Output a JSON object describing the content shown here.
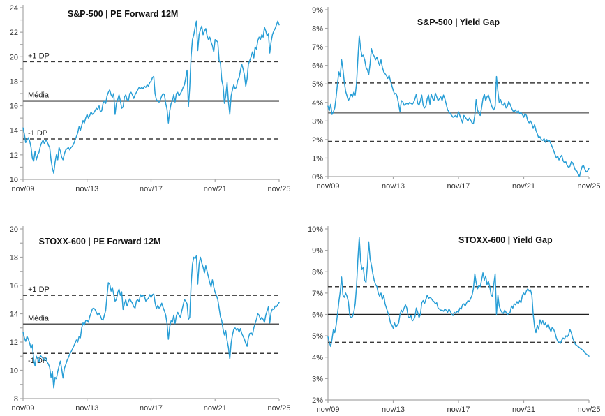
{
  "page": {
    "background": "#ffffff"
  },
  "colors": {
    "series_line": "#289ED6",
    "mean_line_gray": "#6E6E6E",
    "dashed_line": "#3A3A3A",
    "axis": "#A6A6A6",
    "tick_text": "#333333",
    "title_text": "#111111",
    "ref_label_text": "#1F1F1F"
  },
  "chart_data": [
    {
      "id": "sp500-pe-forward-12m",
      "type": "line",
      "title": "S&P-500 | PE Forward 12M",
      "x_tick_labels": [
        "nov/09",
        "nov/13",
        "nov/17",
        "nov/21",
        "nov/25"
      ],
      "x_range": [
        "nov/09",
        "nov/25"
      ],
      "x_frequency": "monthly",
      "ylim": [
        10,
        24
      ],
      "y_label_step": 2,
      "y_tick_step": 1,
      "y_format": "number",
      "grid": false,
      "legend": "none",
      "reference_lines": [
        {
          "label": "+1 DP",
          "value": 19.6,
          "style": "dashed",
          "label_position": "above"
        },
        {
          "label": "Média",
          "value": 16.4,
          "style": "solid",
          "label_position": "above"
        },
        {
          "label": "-1 DP",
          "value": 13.3,
          "style": "dashed",
          "label_position": "above"
        }
      ],
      "series": [
        {
          "name": "PE Forward 12M",
          "monthly_values": [
            14.2,
            13.7,
            13.0,
            13.2,
            13.4,
            13.1,
            12.6,
            11.7,
            11.5,
            12.3,
            11.6,
            12.0,
            12.2,
            12.7,
            13.0,
            13.2,
            12.9,
            13.2,
            13.1,
            12.8,
            12.6,
            11.6,
            10.9,
            10.5,
            11.4,
            12.0,
            11.6,
            12.6,
            12.3,
            11.8,
            11.6,
            12.1,
            12.4,
            12.5,
            12.6,
            12.4,
            12.6,
            12.7,
            12.9,
            13.2,
            13.5,
            13.8,
            14.3,
            14.0,
            14.4,
            14.8,
            14.6,
            15.0,
            15.3,
            15.0,
            15.2,
            15.5,
            15.3,
            15.4,
            15.6,
            15.8,
            15.7,
            16.0,
            15.5,
            15.6,
            16.2,
            16.4,
            16.2,
            16.8,
            17.1,
            17.3,
            16.9,
            16.7,
            17.0,
            15.3,
            16.2,
            16.5,
            16.9,
            16.4,
            15.8,
            15.9,
            16.7,
            16.9,
            16.5,
            16.4,
            17.0,
            17.1,
            16.9,
            16.6,
            16.9,
            17.1,
            17.3,
            17.5,
            17.4,
            17.5,
            17.4,
            17.6,
            17.5,
            17.7,
            17.6,
            17.9,
            18.0,
            18.3,
            18.4,
            17.0,
            16.5,
            16.4,
            16.3,
            16.5,
            16.8,
            17.0,
            16.9,
            16.2,
            15.7,
            14.6,
            15.6,
            16.2,
            16.4,
            16.9,
            16.3,
            17.0,
            17.1,
            16.8,
            17.0,
            17.2,
            17.5,
            17.7,
            18.3,
            18.9,
            15.9,
            17.5,
            20.0,
            21.4,
            21.8,
            22.4,
            22.9,
            20.5,
            21.8,
            22.2,
            22.5,
            21.8,
            22.1,
            22.3,
            21.7,
            21.4,
            21.6,
            21.2,
            20.9,
            20.4,
            21.4,
            21.3,
            21.2,
            19.7,
            19.5,
            18.1,
            17.6,
            16.2,
            16.8,
            17.9,
            16.3,
            15.3,
            16.8,
            17.3,
            17.7,
            17.4,
            17.5,
            18.1,
            18.3,
            18.9,
            19.4,
            19.0,
            18.5,
            17.6,
            18.2,
            19.4,
            19.7,
            20.0,
            20.4,
            19.9,
            20.8,
            20.6,
            21.3,
            21.6,
            21.4,
            21.8,
            21.6,
            22.4,
            22.1,
            21.7,
            21.9,
            20.3,
            21.2,
            21.8,
            22.1,
            22.3,
            22.6,
            22.9,
            22.6
          ]
        }
      ]
    },
    {
      "id": "sp500-yield-gap",
      "type": "line",
      "title": "S&P-500 | Yield Gap",
      "x_tick_labels": [
        "nov/09",
        "nov/13",
        "nov/17",
        "nov/21",
        "nov/25"
      ],
      "x_range": [
        "nov/09",
        "nov/25"
      ],
      "x_frequency": "monthly",
      "ylim": [
        0,
        9
      ],
      "y_label_step": 1,
      "y_tick_step": 1,
      "y_format": "percent",
      "grid": false,
      "legend": "none",
      "reference_lines": [
        {
          "label": "",
          "value": 5.05,
          "style": "dashed",
          "label_position": "above"
        },
        {
          "label": "",
          "value": 3.45,
          "style": "solid",
          "label_position": "above"
        },
        {
          "label": "",
          "value": 1.9,
          "style": "dashed",
          "label_position": "above"
        }
      ],
      "series": [
        {
          "name": "Yield Gap",
          "monthly_values": [
            3.8,
            3.55,
            3.9,
            3.35,
            3.5,
            3.7,
            4.3,
            5.0,
            5.65,
            5.4,
            6.3,
            5.8,
            5.1,
            4.6,
            4.35,
            4.1,
            4.25,
            4.45,
            4.3,
            4.55,
            4.4,
            5.0,
            6.4,
            7.6,
            6.9,
            6.5,
            6.55,
            6.3,
            5.9,
            5.75,
            5.5,
            6.1,
            6.9,
            6.6,
            6.5,
            6.3,
            6.45,
            6.2,
            6.0,
            6.3,
            5.9,
            5.65,
            5.55,
            5.45,
            5.3,
            5.45,
            5.15,
            4.9,
            4.65,
            4.45,
            4.5,
            4.3,
            3.9,
            3.5,
            4.1,
            4.05,
            3.85,
            3.9,
            3.95,
            3.9,
            4.0,
            3.95,
            3.9,
            4.0,
            4.2,
            4.45,
            3.95,
            3.85,
            4.1,
            4.4,
            3.85,
            3.7,
            3.8,
            4.2,
            4.4,
            3.9,
            4.45,
            4.2,
            4.1,
            4.5,
            4.3,
            4.1,
            4.2,
            4.3,
            4.1,
            4.4,
            4.2,
            3.9,
            3.6,
            3.5,
            3.4,
            3.3,
            3.2,
            3.25,
            3.3,
            3.2,
            3.5,
            3.3,
            3.1,
            2.9,
            3.3,
            3.2,
            3.1,
            3.0,
            3.15,
            3.05,
            2.9,
            2.85,
            3.3,
            4.15,
            3.6,
            3.4,
            3.3,
            3.7,
            4.2,
            4.45,
            4.1,
            4.3,
            4.4,
            4.15,
            3.9,
            3.7,
            3.6,
            3.8,
            5.4,
            4.6,
            4.0,
            4.15,
            3.9,
            3.85,
            4.0,
            3.7,
            3.8,
            4.05,
            3.9,
            3.7,
            3.55,
            3.5,
            3.6,
            3.45,
            3.55,
            3.4,
            3.45,
            3.35,
            3.2,
            3.4,
            3.3,
            3.0,
            2.9,
            3.0,
            2.85,
            2.6,
            2.8,
            2.5,
            2.3,
            2.1,
            2.15,
            2.0,
            1.95,
            2.05,
            1.85,
            2.0,
            1.9,
            1.95,
            1.75,
            1.6,
            1.4,
            1.2,
            1.0,
            1.1,
            0.9,
            1.05,
            1.15,
            0.85,
            0.75,
            0.8,
            0.6,
            0.5,
            0.55,
            0.8,
            0.75,
            0.55,
            0.35,
            0.3,
            0.15,
            0.0,
            0.3,
            0.55,
            0.6,
            0.4,
            0.25,
            0.3,
            0.45
          ]
        }
      ]
    },
    {
      "id": "stoxx600-pe-forward-12m",
      "type": "line",
      "title": "STOXX-600 | PE Forward 12M",
      "x_tick_labels": [
        "nov/09",
        "nov/13",
        "nov/17",
        "nov/21",
        "nov/25"
      ],
      "x_range": [
        "nov/09",
        "nov/25"
      ],
      "x_frequency": "monthly",
      "ylim": [
        8,
        20
      ],
      "y_label_step": 2,
      "y_tick_step": 1,
      "y_format": "number",
      "grid": false,
      "legend": "none",
      "reference_lines": [
        {
          "label": "+1 DP",
          "value": 15.3,
          "style": "dashed",
          "label_position": "above"
        },
        {
          "label": "Média",
          "value": 13.25,
          "style": "solid",
          "label_position": "above"
        },
        {
          "label": "-1 DP",
          "value": 11.2,
          "style": "dashed",
          "label_position": "below"
        }
      ],
      "series": [
        {
          "name": "PE Forward 12M",
          "monthly_values": [
            12.7,
            12.3,
            12.05,
            12.4,
            12.2,
            11.9,
            11.55,
            11.8,
            10.75,
            10.3,
            11.0,
            10.8,
            10.6,
            11.05,
            10.95,
            10.85,
            10.7,
            10.9,
            10.6,
            10.45,
            10.2,
            9.5,
            9.9,
            8.75,
            9.5,
            9.4,
            9.9,
            10.3,
            10.65,
            10.1,
            9.45,
            10.15,
            10.4,
            10.7,
            10.9,
            11.15,
            11.3,
            11.5,
            11.7,
            11.9,
            12.15,
            12.0,
            12.4,
            12.3,
            13.0,
            13.35,
            13.2,
            13.5,
            13.55,
            13.4,
            13.8,
            14.05,
            14.35,
            14.4,
            14.3,
            14.1,
            13.9,
            14.05,
            13.85,
            13.6,
            13.55,
            13.9,
            14.25,
            15.3,
            16.2,
            16.1,
            15.6,
            15.85,
            15.35,
            14.9,
            15.0,
            15.5,
            15.75,
            15.3,
            15.55,
            14.3,
            14.7,
            15.0,
            14.55,
            14.85,
            15.05,
            14.9,
            14.75,
            14.5,
            14.4,
            14.9,
            15.0,
            14.85,
            15.35,
            15.2,
            15.3,
            15.25,
            14.9,
            15.0,
            15.1,
            15.35,
            15.15,
            15.35,
            15.4,
            14.8,
            14.35,
            14.6,
            14.4,
            14.5,
            14.75,
            14.45,
            14.2,
            13.9,
            13.3,
            12.2,
            13.1,
            13.5,
            13.4,
            13.9,
            13.3,
            13.85,
            14.1,
            13.9,
            13.75,
            14.2,
            14.6,
            15.0,
            14.9,
            14.7,
            13.6,
            13.75,
            16.0,
            17.5,
            18.0,
            17.9,
            18.1,
            16.1,
            17.5,
            18.0,
            17.6,
            17.3,
            16.9,
            17.4,
            17.0,
            16.6,
            16.2,
            15.9,
            16.4,
            15.9,
            15.5,
            15.3,
            15.0,
            14.4,
            13.8,
            13.5,
            12.9,
            12.5,
            12.8,
            12.1,
            11.6,
            10.8,
            11.9,
            12.5,
            12.9,
            13.0,
            12.85,
            12.95,
            12.7,
            12.95,
            12.6,
            12.4,
            12.2,
            11.9,
            11.7,
            12.3,
            12.6,
            12.65,
            12.5,
            13.0,
            13.3,
            13.6,
            14.0,
            13.9,
            13.6,
            13.75,
            13.6,
            13.4,
            13.9,
            14.2,
            14.5,
            13.35,
            14.1,
            14.35,
            14.3,
            14.55,
            14.5,
            14.65,
            14.8
          ]
        }
      ]
    },
    {
      "id": "stoxx600-yield-gap",
      "type": "line",
      "title": "STOXX-600 | Yield Gap",
      "x_tick_labels": [
        "nov/09",
        "nov/13",
        "nov/17",
        "nov/21",
        "nov/25"
      ],
      "x_range": [
        "nov/09",
        "nov/25"
      ],
      "x_frequency": "monthly",
      "ylim": [
        2,
        10
      ],
      "y_label_step": 1,
      "y_tick_step": 1,
      "y_format": "percent",
      "grid": false,
      "legend": "none",
      "reference_lines": [
        {
          "label": "",
          "value": 7.3,
          "style": "dashed",
          "label_position": "above"
        },
        {
          "label": "",
          "value": 6.0,
          "style": "solid",
          "label_position": "above"
        },
        {
          "label": "",
          "value": 4.7,
          "style": "dashed",
          "label_position": "above"
        }
      ],
      "series": [
        {
          "name": "Yield Gap",
          "monthly_values": [
            4.95,
            4.7,
            4.5,
            4.85,
            5.3,
            5.15,
            5.5,
            6.0,
            6.6,
            7.05,
            7.75,
            6.9,
            6.8,
            7.0,
            6.85,
            6.6,
            5.95,
            5.85,
            5.9,
            6.1,
            6.5,
            7.3,
            8.6,
            9.6,
            8.5,
            8.1,
            8.2,
            7.6,
            7.5,
            8.3,
            9.4,
            8.6,
            8.3,
            7.9,
            7.6,
            7.4,
            7.3,
            7.0,
            6.85,
            7.0,
            6.7,
            6.9,
            6.5,
            6.3,
            6.1,
            5.9,
            5.6,
            5.5,
            5.35,
            5.6,
            5.4,
            5.5,
            5.6,
            6.0,
            6.2,
            6.1,
            6.3,
            6.45,
            6.3,
            5.9,
            5.85,
            5.95,
            5.7,
            5.75,
            5.9,
            6.3,
            6.1,
            5.85,
            6.0,
            6.55,
            6.65,
            6.5,
            6.7,
            6.9,
            6.75,
            6.8,
            6.75,
            6.65,
            6.6,
            6.5,
            6.55,
            6.3,
            6.25,
            6.2,
            6.2,
            6.15,
            6.25,
            6.2,
            6.1,
            6.25,
            6.15,
            6.0,
            5.95,
            6.1,
            6.05,
            6.15,
            6.1,
            6.3,
            6.25,
            6.45,
            6.5,
            6.4,
            6.55,
            6.65,
            6.6,
            6.75,
            6.9,
            7.2,
            7.9,
            7.5,
            7.2,
            7.35,
            7.3,
            7.6,
            7.95,
            7.6,
            7.8,
            7.4,
            7.55,
            7.3,
            6.9,
            6.85,
            7.4,
            7.9,
            6.0,
            6.9,
            6.4,
            6.2,
            6.1,
            6.05,
            6.2,
            6.1,
            6.0,
            6.05,
            6.1,
            6.4,
            6.3,
            6.5,
            6.45,
            6.6,
            6.5,
            6.65,
            6.55,
            6.9,
            7.0,
            6.9,
            7.1,
            7.2,
            7.1,
            7.15,
            6.9,
            6.0,
            5.4,
            5.15,
            5.5,
            5.3,
            5.75,
            5.55,
            5.7,
            5.5,
            5.6,
            5.4,
            5.55,
            5.35,
            5.2,
            5.4,
            5.3,
            5.15,
            4.9,
            4.75,
            4.7,
            4.65,
            4.8,
            4.9,
            4.85,
            5.0,
            4.95,
            5.05,
            5.3,
            5.15,
            4.9,
            4.75,
            4.6,
            4.55,
            4.5,
            4.45,
            4.4,
            4.35,
            4.3,
            4.2,
            4.15,
            4.1,
            4.05
          ]
        }
      ]
    }
  ]
}
